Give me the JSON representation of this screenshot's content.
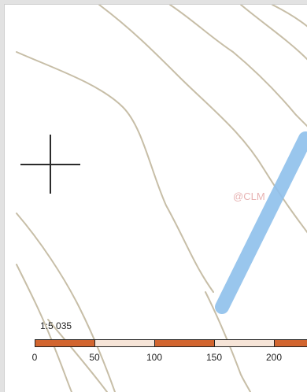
{
  "map": {
    "scale_ratio": "1:5 035",
    "scale_labels": [
      "0",
      "50",
      "100",
      "150",
      "200"
    ],
    "colors": {
      "contour": "#c7bea7",
      "route": "#8fc0ec",
      "crosshair": "#2b2b2b",
      "scale_dark": "#d2652f",
      "scale_light": "#f6e4d7"
    }
  }
}
